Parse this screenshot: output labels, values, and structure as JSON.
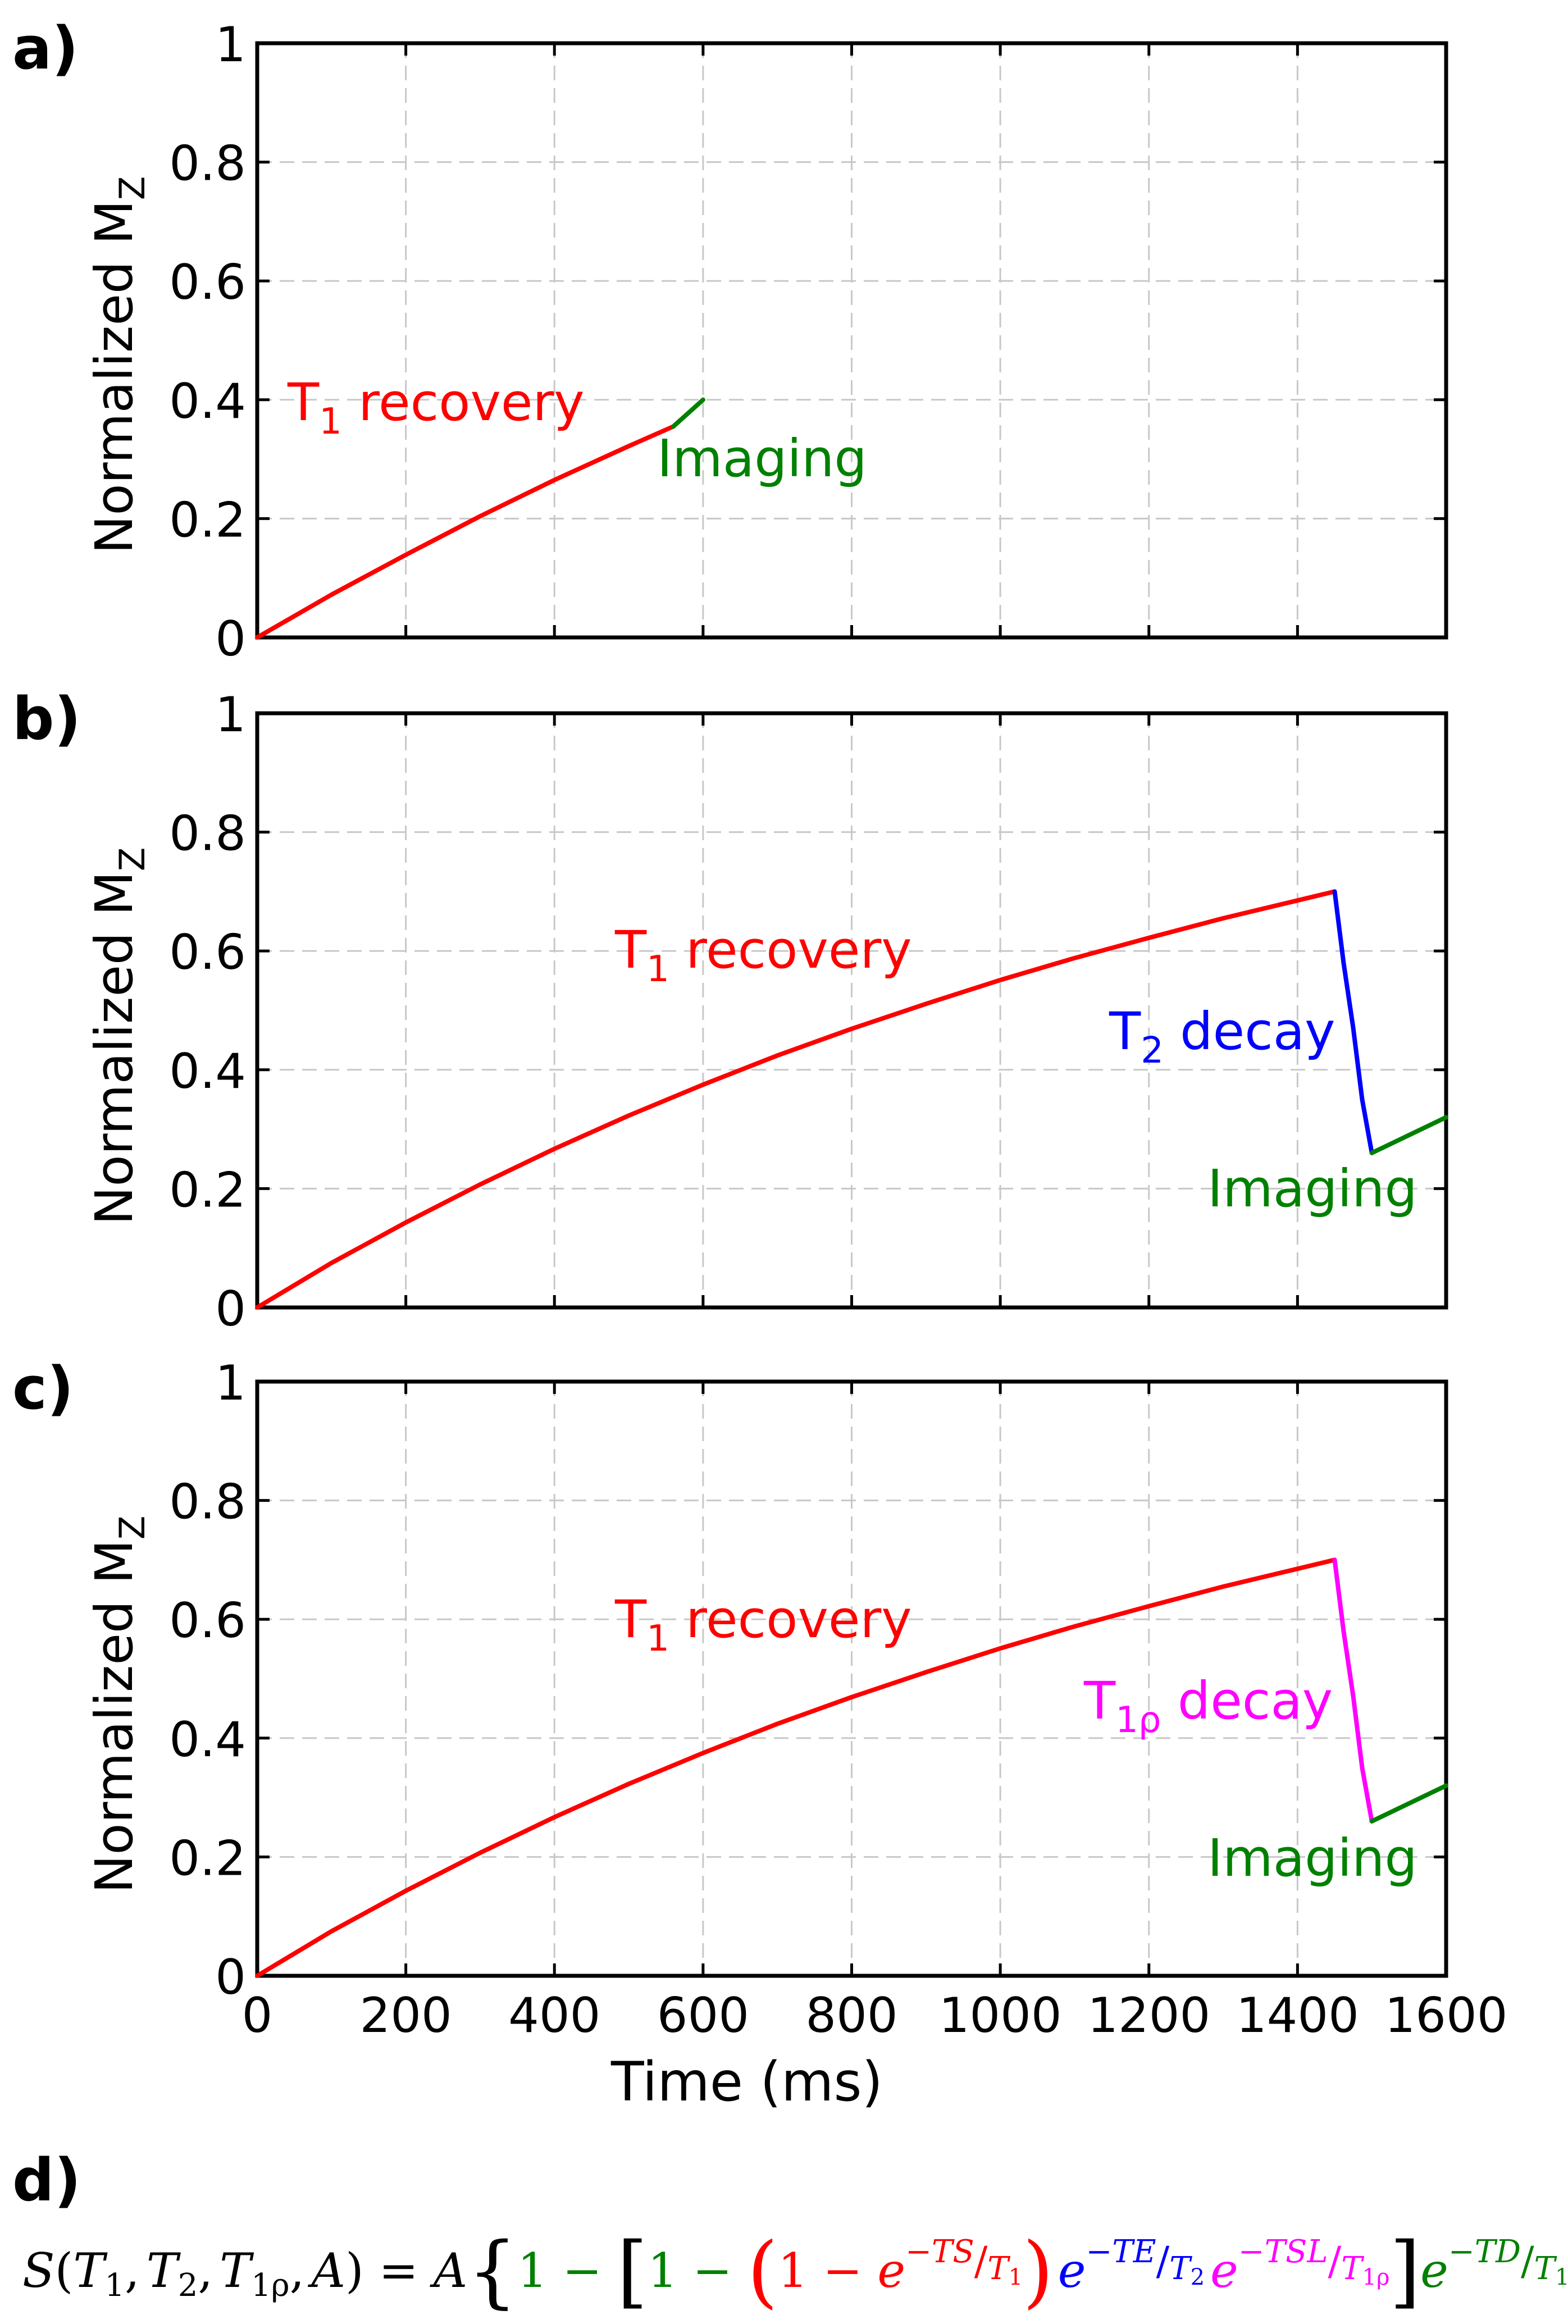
{
  "chart_data": [
    {
      "type": "line",
      "panel_label": "a)",
      "xlim": [
        0,
        1600
      ],
      "ylim": [
        0,
        1
      ],
      "xticks": [
        0,
        200,
        400,
        600,
        800,
        1000,
        1200,
        1400,
        1600
      ],
      "yticks": [
        0,
        0.2,
        0.4,
        0.6,
        0.8,
        1
      ],
      "ytick_labels": [
        "0",
        "0.2",
        "0.4",
        "0.6",
        "0.8",
        "1"
      ],
      "xtick_labels_visible": false,
      "ylabel_main": "Normalized M",
      "ylabel_sub": "Z",
      "xlabel": "",
      "grid": true,
      "series": [
        {
          "name": "T1 recovery",
          "color": "#ff0000",
          "x": [
            0,
            100,
            200,
            300,
            400,
            500,
            560
          ],
          "y": [
            0,
            0.072,
            0.139,
            0.204,
            0.265,
            0.322,
            0.355
          ]
        },
        {
          "name": "Imaging",
          "color": "#008000",
          "x": [
            560,
            600
          ],
          "y": [
            0.355,
            0.4
          ]
        }
      ],
      "annotations": [
        {
          "main": "T",
          "sub": "1",
          "rest": " recovery",
          "color": "#ff0000"
        },
        {
          "main": "Imaging",
          "sub": "",
          "rest": "",
          "color": "#008000"
        }
      ]
    },
    {
      "type": "line",
      "panel_label": "b)",
      "xlim": [
        0,
        1600
      ],
      "ylim": [
        0,
        1
      ],
      "xticks": [
        0,
        200,
        400,
        600,
        800,
        1000,
        1200,
        1400,
        1600
      ],
      "yticks": [
        0,
        0.2,
        0.4,
        0.6,
        0.8,
        1
      ],
      "ytick_labels": [
        "0",
        "0.2",
        "0.4",
        "0.6",
        "0.8",
        "1"
      ],
      "xtick_labels_visible": false,
      "ylabel_main": "Normalized M",
      "ylabel_sub": "Z",
      "xlabel": "",
      "grid": true,
      "series": [
        {
          "name": "T1 recovery",
          "color": "#ff0000",
          "x": [
            0,
            100,
            200,
            300,
            400,
            500,
            600,
            700,
            800,
            900,
            1000,
            1100,
            1200,
            1300,
            1400,
            1450
          ],
          "y": [
            0,
            0.075,
            0.143,
            0.207,
            0.267,
            0.323,
            0.375,
            0.424,
            0.469,
            0.511,
            0.551,
            0.588,
            0.622,
            0.655,
            0.685,
            0.7
          ]
        },
        {
          "name": "T2 decay",
          "color": "#0000ff",
          "x": [
            1450,
            1462,
            1475,
            1487,
            1500
          ],
          "y": [
            0.7,
            0.58,
            0.47,
            0.35,
            0.26
          ]
        },
        {
          "name": "Imaging",
          "color": "#008000",
          "x": [
            1500,
            1600
          ],
          "y": [
            0.26,
            0.32
          ]
        }
      ],
      "annotations": [
        {
          "main": "T",
          "sub": "1",
          "rest": " recovery",
          "color": "#ff0000"
        },
        {
          "main": "T",
          "sub": "2",
          "rest": " decay",
          "color": "#0000ff"
        },
        {
          "main": "Imaging",
          "sub": "",
          "rest": "",
          "color": "#008000"
        }
      ]
    },
    {
      "type": "line",
      "panel_label": "c)",
      "xlim": [
        0,
        1600
      ],
      "ylim": [
        0,
        1
      ],
      "xticks": [
        0,
        200,
        400,
        600,
        800,
        1000,
        1200,
        1400,
        1600
      ],
      "yticks": [
        0,
        0.2,
        0.4,
        0.6,
        0.8,
        1
      ],
      "ytick_labels": [
        "0",
        "0.2",
        "0.4",
        "0.6",
        "0.8",
        "1"
      ],
      "xtick_labels": [
        "0",
        "200",
        "400",
        "600",
        "800",
        "1000",
        "1200",
        "1400",
        "1600"
      ],
      "xtick_labels_visible": true,
      "ylabel_main": "Normalized M",
      "ylabel_sub": "Z",
      "xlabel": "Time (ms)",
      "grid": true,
      "series": [
        {
          "name": "T1 recovery",
          "color": "#ff0000",
          "x": [
            0,
            100,
            200,
            300,
            400,
            500,
            600,
            700,
            800,
            900,
            1000,
            1100,
            1200,
            1300,
            1400,
            1450
          ],
          "y": [
            0,
            0.075,
            0.143,
            0.207,
            0.267,
            0.323,
            0.375,
            0.424,
            0.469,
            0.511,
            0.551,
            0.588,
            0.622,
            0.655,
            0.685,
            0.7
          ]
        },
        {
          "name": "T1rho decay",
          "color": "#ff00ff",
          "x": [
            1450,
            1462,
            1475,
            1487,
            1500
          ],
          "y": [
            0.7,
            0.58,
            0.47,
            0.35,
            0.26
          ]
        },
        {
          "name": "Imaging",
          "color": "#008000",
          "x": [
            1500,
            1600
          ],
          "y": [
            0.26,
            0.32
          ]
        }
      ],
      "annotations": [
        {
          "main": "T",
          "sub": "1",
          "rest": " recovery",
          "color": "#ff0000"
        },
        {
          "main": "T",
          "sub": "1ρ",
          "rest": " decay",
          "color": "#ff00ff"
        },
        {
          "main": "Imaging",
          "sub": "",
          "rest": "",
          "color": "#008000"
        }
      ]
    }
  ],
  "equation": {
    "label": "d)",
    "colors": {
      "black": "#000000",
      "green": "#008000",
      "red": "#ff0000",
      "blue": "#0000ff",
      "magenta": "#ff00ff"
    },
    "lhs_S": "S",
    "lhs_open": "(",
    "lhs_T": "T",
    "lhs_1": "1",
    "comma": ",",
    "lhs_T2": "T",
    "lhs_2": "2",
    "lhs_T1r": "T",
    "lhs_1r": "1ρ",
    "lhs_A": "A",
    "lhs_close": ")",
    "eq": " = ",
    "A": "A",
    "brace_open": "{",
    "one": "1",
    "minus": " − ",
    "bracket_open": "[",
    "paren_open": "(",
    "e": "e",
    "exp_TS": "−TS",
    "slash": "/",
    "T": "T",
    "sub1": "1",
    "paren_close": ")",
    "exp_TE": "−TE",
    "sub2": "2",
    "exp_TSL": "−TSL",
    "sub1r": "1ρ",
    "bracket_close": "]",
    "exp_TD": "−TD",
    "brace_close": "}"
  }
}
